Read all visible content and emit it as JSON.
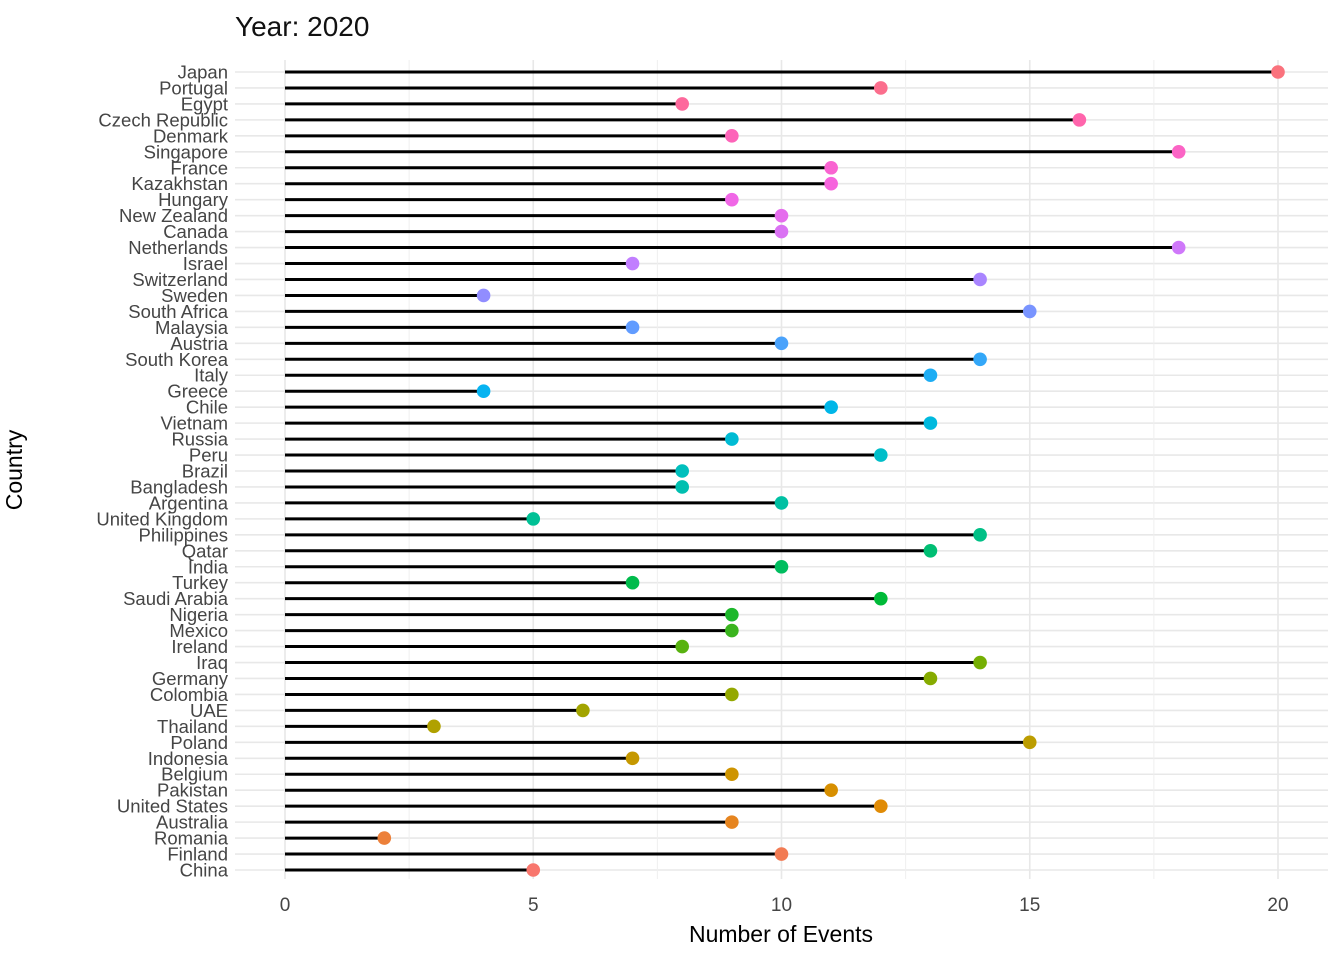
{
  "title": "Year: 2020",
  "chart_data": {
    "type": "bar",
    "variant": "lollipop",
    "orientation": "horizontal",
    "title": "Year: 2020",
    "xlabel": "Number of Events",
    "ylabel": "Country",
    "xlim": [
      0,
      20
    ],
    "xticks": [
      "0",
      "5",
      "10",
      "15",
      "20"
    ],
    "xtick_values": [
      0,
      5,
      10,
      15,
      20
    ],
    "minor_xticks": [
      2.5,
      7.5,
      12.5,
      17.5
    ],
    "grid": true,
    "legend": false,
    "panel_background": "#ffffff",
    "grid_color": "#e8e8e8",
    "minor_grid_color": "#efefef",
    "stem_color": "#000000",
    "axis_text_color": "#454545",
    "axis_title_color": "#000000",
    "title_color": "#111111",
    "categories": [
      "Japan",
      "Portugal",
      "Egypt",
      "Czech Republic",
      "Denmark",
      "Singapore",
      "France",
      "Kazakhstan",
      "Hungary",
      "New Zealand",
      "Canada",
      "Netherlands",
      "Israel",
      "Switzerland",
      "Sweden",
      "South Africa",
      "Malaysia",
      "Austria",
      "South Korea",
      "Italy",
      "Greece",
      "Chile",
      "Vietnam",
      "Russia",
      "Peru",
      "Brazil",
      "Bangladesh",
      "Argentina",
      "United Kingdom",
      "Philippines",
      "Qatar",
      "India",
      "Turkey",
      "Saudi Arabia",
      "Nigeria",
      "Mexico",
      "Ireland",
      "Iraq",
      "Germany",
      "Colombia",
      "UAE",
      "Thailand",
      "Poland",
      "Indonesia",
      "Belgium",
      "Pakistan",
      "United States",
      "Australia",
      "Romania",
      "Finland",
      "China"
    ],
    "values": [
      20,
      12,
      8,
      16,
      9,
      18,
      11,
      11,
      9,
      10,
      10,
      18,
      7,
      14,
      4,
      15,
      7,
      10,
      14,
      13,
      4,
      11,
      13,
      9,
      12,
      8,
      8,
      10,
      5,
      14,
      13,
      10,
      7,
      12,
      9,
      9,
      8,
      14,
      13,
      9,
      6,
      3,
      15,
      7,
      9,
      11,
      12,
      9,
      2,
      10,
      5
    ],
    "colors": [
      "#FA727D",
      "#FB6E8D",
      "#FD699C",
      "#FF65AC",
      "#FD64B9",
      "#FB64C5",
      "#F964D1",
      "#F664DD",
      "#F067E6",
      "#E56CED",
      "#DA72F3",
      "#CF78FA",
      "#C17EFF",
      "#A985FF",
      "#918DFF",
      "#7994FF",
      "#619CFF",
      "#4AA2FB",
      "#33A7F8",
      "#1DADF4",
      "#06B3F1",
      "#00B6E8",
      "#00B9DE",
      "#00BBD4",
      "#00BEC9",
      "#00BFBD",
      "#00BFB0",
      "#00C0A3",
      "#00C095",
      "#00C086",
      "#00BE73",
      "#00BD5F",
      "#00BB4C",
      "#00BA38",
      "#1DB72B",
      "#3AB41E",
      "#58B210",
      "#75AF03",
      "#86AB00",
      "#94A800",
      "#A2A400",
      "#B0A100",
      "#BC9D00",
      "#C59800",
      "#CE9400",
      "#D78F00",
      "#E08B06",
      "#E68520",
      "#EC803A",
      "#F27B53",
      "#F8766D"
    ]
  }
}
